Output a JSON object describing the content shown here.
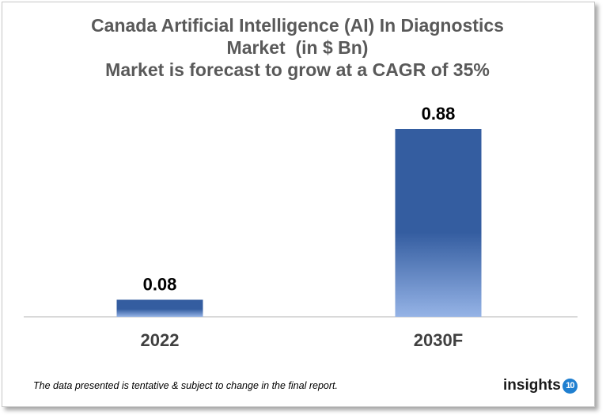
{
  "chart_data": {
    "type": "bar",
    "title": [
      "Canada Artificial Intelligence (AI) In Diagnostics",
      "Market  (in $ Bn)",
      "Market is forecast to grow at a CAGR of 35%"
    ],
    "categories": [
      "2022",
      "2030F"
    ],
    "values": [
      0.08,
      0.88
    ],
    "data_labels": [
      "0.08",
      "0.88"
    ],
    "xlabel": "",
    "ylabel": "",
    "ylim": [
      0,
      0.88
    ],
    "grid": false,
    "legend": "none",
    "colors": {
      "bar_top": "#345da0",
      "bar_bottom": "#95b3e6",
      "label": "#000000",
      "title": "#595959"
    }
  },
  "footer": {
    "note": "The data presented is tentative & subject to change in the final report."
  },
  "logo": {
    "text": "insights",
    "badge": "10"
  }
}
